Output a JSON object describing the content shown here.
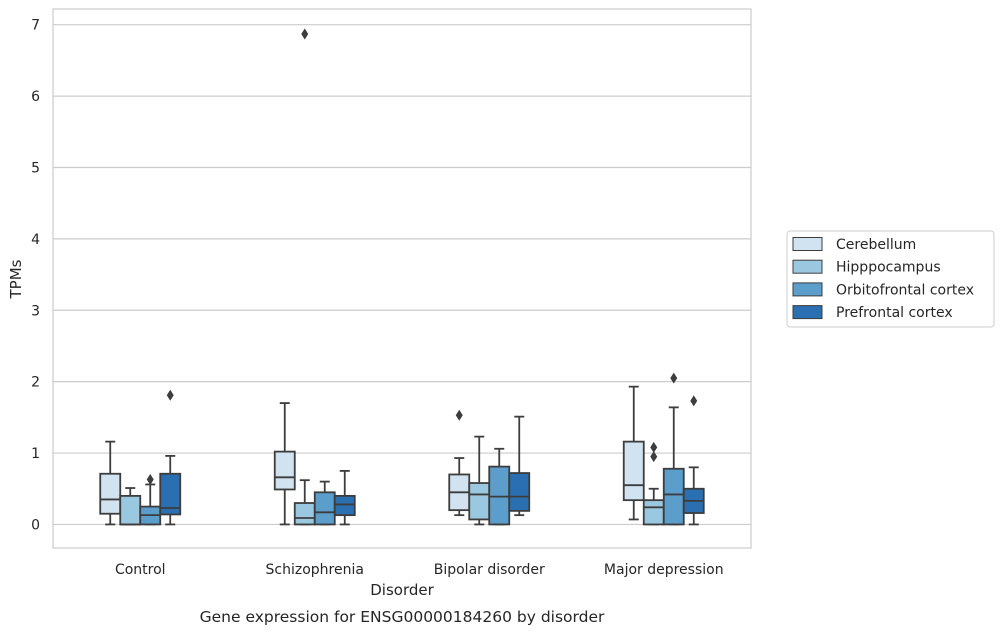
{
  "caption": "Gene expression for ENSG00000184260 by disorder",
  "chart_data": {
    "type": "box",
    "xlabel": "Disorder",
    "ylabel": "TPMs",
    "ylim": [
      -0.33,
      7.22
    ],
    "yticks": [
      0,
      1,
      2,
      3,
      4,
      5,
      6,
      7
    ],
    "grid": "horizontal",
    "legend_position": "right",
    "categories": [
      "Control",
      "Schizophrenia",
      "Bipolar disorder",
      "Major depression"
    ],
    "series": [
      {
        "name": "Cerebellum",
        "color": "#d1e2f1",
        "boxes": [
          {
            "whislo": 0.0,
            "q1": 0.15,
            "med": 0.35,
            "q3": 0.71,
            "whishi": 1.16,
            "fliers": []
          },
          {
            "whislo": 0.0,
            "q1": 0.49,
            "med": 0.66,
            "q3": 1.02,
            "whishi": 1.7,
            "fliers": []
          },
          {
            "whislo": 0.13,
            "q1": 0.2,
            "med": 0.45,
            "q3": 0.7,
            "whishi": 0.93,
            "fliers": [
              1.53
            ]
          },
          {
            "whislo": 0.07,
            "q1": 0.34,
            "med": 0.55,
            "q3": 1.16,
            "whishi": 1.93,
            "fliers": []
          }
        ]
      },
      {
        "name": "Hipppocampus",
        "color": "#9ac8e0",
        "boxes": [
          {
            "whislo": 0.0,
            "q1": 0.0,
            "med": 0.0,
            "q3": 0.4,
            "whishi": 0.51,
            "fliers": []
          },
          {
            "whislo": 0.0,
            "q1": 0.0,
            "med": 0.09,
            "q3": 0.3,
            "whishi": 0.62,
            "fliers": [
              6.87
            ]
          },
          {
            "whislo": 0.0,
            "q1": 0.07,
            "med": 0.42,
            "q3": 0.58,
            "whishi": 1.23,
            "fliers": []
          },
          {
            "whislo": 0.0,
            "q1": 0.0,
            "med": 0.24,
            "q3": 0.34,
            "whishi": 0.5,
            "fliers": [
              0.95,
              1.08
            ]
          }
        ]
      },
      {
        "name": "Orbitofrontal cortex",
        "color": "#5b9dcb",
        "boxes": [
          {
            "whislo": 0.0,
            "q1": 0.0,
            "med": 0.13,
            "q3": 0.25,
            "whishi": 0.56,
            "fliers": [
              0.63
            ]
          },
          {
            "whislo": 0.0,
            "q1": 0.0,
            "med": 0.17,
            "q3": 0.45,
            "whishi": 0.6,
            "fliers": []
          },
          {
            "whislo": 0.0,
            "q1": 0.0,
            "med": 0.39,
            "q3": 0.81,
            "whishi": 1.06,
            "fliers": []
          },
          {
            "whislo": 0.0,
            "q1": 0.0,
            "med": 0.42,
            "q3": 0.78,
            "whishi": 1.64,
            "fliers": [
              2.05
            ]
          }
        ]
      },
      {
        "name": "Prefrontal cortex",
        "color": "#2a6fb1",
        "boxes": [
          {
            "whislo": 0.0,
            "q1": 0.14,
            "med": 0.23,
            "q3": 0.71,
            "whishi": 0.96,
            "fliers": [
              1.81
            ]
          },
          {
            "whislo": 0.0,
            "q1": 0.13,
            "med": 0.28,
            "q3": 0.4,
            "whishi": 0.75,
            "fliers": []
          },
          {
            "whislo": 0.13,
            "q1": 0.19,
            "med": 0.39,
            "q3": 0.72,
            "whishi": 1.51,
            "fliers": []
          },
          {
            "whislo": 0.0,
            "q1": 0.16,
            "med": 0.33,
            "q3": 0.5,
            "whishi": 0.8,
            "fliers": [
              1.73
            ]
          }
        ]
      }
    ]
  }
}
